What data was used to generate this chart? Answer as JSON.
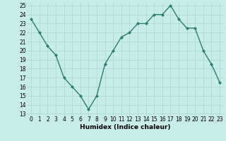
{
  "x": [
    0,
    1,
    2,
    3,
    4,
    5,
    6,
    7,
    8,
    9,
    10,
    11,
    12,
    13,
    14,
    15,
    16,
    17,
    18,
    19,
    20,
    21,
    22,
    23
  ],
  "y": [
    23.5,
    22,
    20.5,
    19.5,
    17,
    16,
    15,
    13.5,
    15,
    18.5,
    20,
    21.5,
    22,
    23,
    23,
    24,
    24,
    25,
    23.5,
    22.5,
    22.5,
    20,
    18.5,
    16.5
  ],
  "xlabel": "Humidex (Indice chaleur)",
  "ylim_min": 12.8,
  "ylim_max": 25.3,
  "xlim_min": -0.5,
  "xlim_max": 23.5,
  "yticks": [
    13,
    14,
    15,
    16,
    17,
    18,
    19,
    20,
    21,
    22,
    23,
    24,
    25
  ],
  "xticks": [
    0,
    1,
    2,
    3,
    4,
    5,
    6,
    7,
    8,
    9,
    10,
    11,
    12,
    13,
    14,
    15,
    16,
    17,
    18,
    19,
    20,
    21,
    22,
    23
  ],
  "line_color": "#2d7d6e",
  "marker": "D",
  "marker_size": 2.0,
  "bg_color": "#c8ede8",
  "grid_color": "#aad6d0",
  "axis_label_fontsize": 6.5,
  "tick_fontsize": 5.5,
  "linewidth": 1.0
}
